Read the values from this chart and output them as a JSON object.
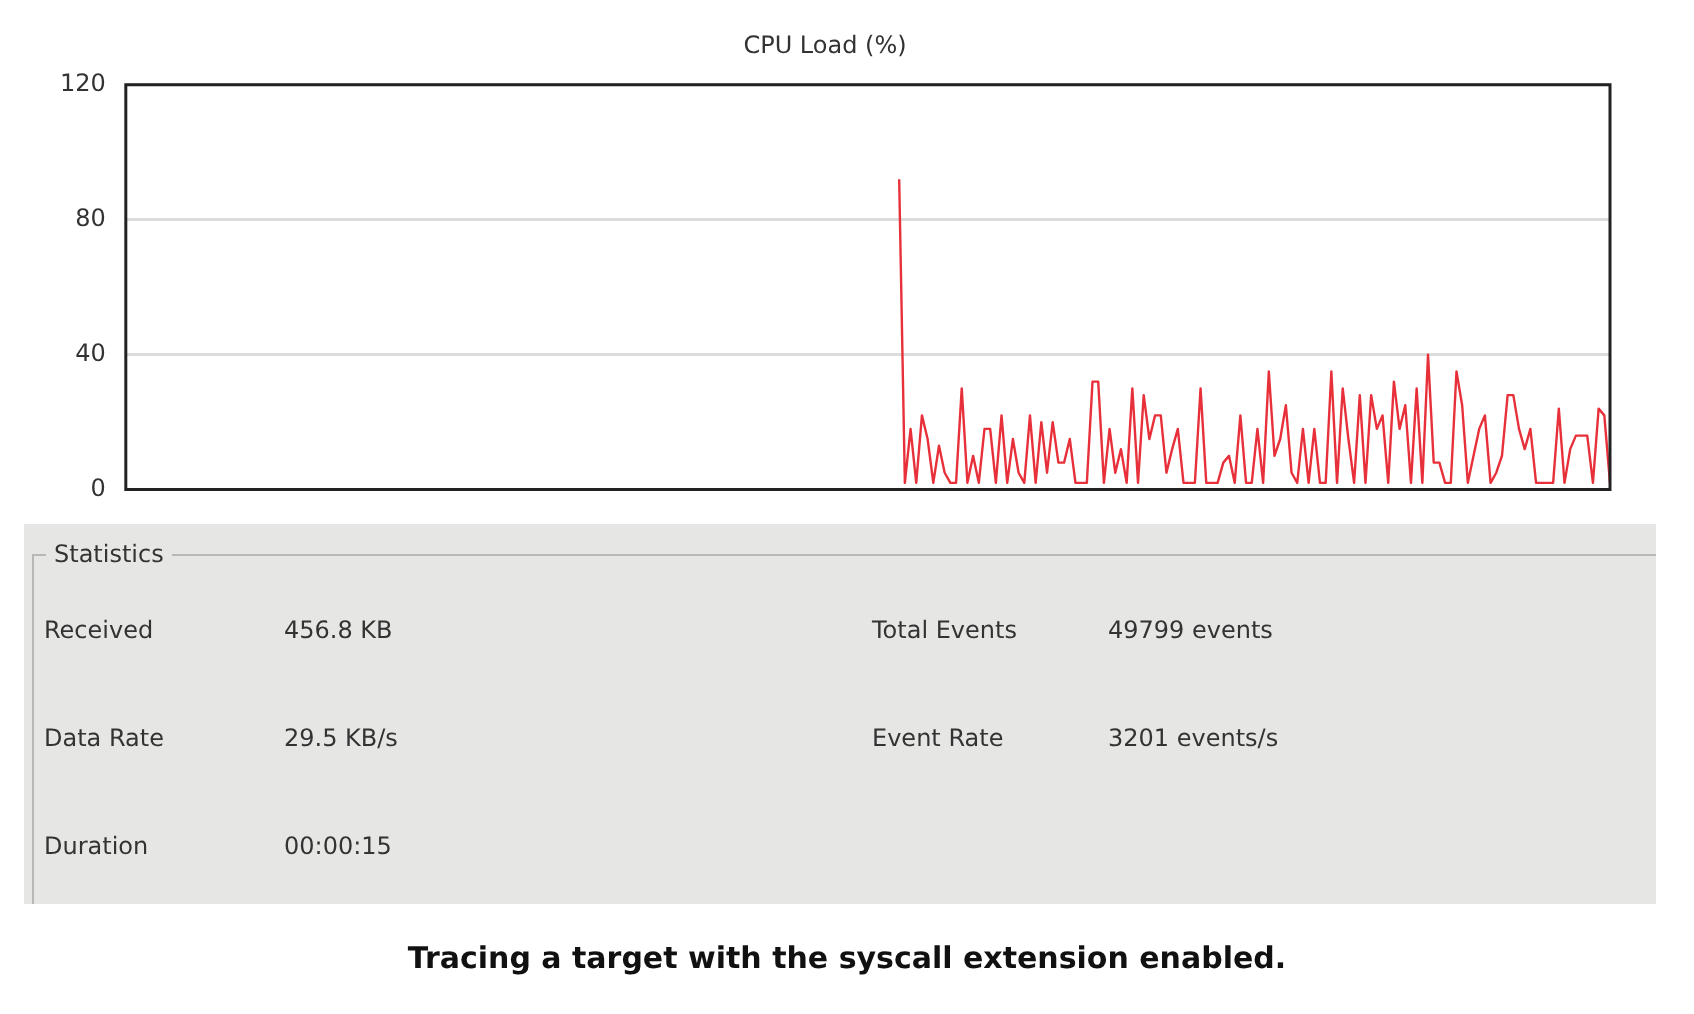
{
  "chart_data": {
    "type": "line",
    "title": "CPU Load (%)",
    "categories": [
      null,
      null,
      null,
      null,
      null,
      null,
      null,
      null,
      null,
      null,
      null,
      null,
      null,
      null,
      null,
      null,
      null,
      null,
      null,
      null,
      null,
      null,
      null,
      null,
      null,
      null,
      null,
      null,
      null,
      null,
      null,
      null,
      null,
      null,
      null,
      null,
      null,
      null,
      null,
      null,
      null,
      null,
      null,
      null,
      null,
      null,
      null,
      null,
      null,
      null,
      null,
      null,
      null,
      null,
      null,
      null,
      null,
      null,
      null,
      null,
      null,
      null,
      null,
      null,
      null,
      null,
      null,
      null,
      null,
      null,
      null,
      null,
      null,
      null,
      null,
      null,
      null,
      null,
      null,
      null,
      null,
      null,
      null,
      null,
      null,
      null,
      null,
      null,
      null,
      null,
      null,
      null,
      null,
      null,
      null,
      null,
      null,
      null,
      null,
      null,
      null,
      null,
      null,
      null,
      null,
      null,
      null,
      null,
      null,
      null,
      null,
      null,
      null,
      null,
      null,
      null,
      null,
      null,
      null,
      null,
      null,
      null,
      null,
      null,
      null,
      null,
      null,
      null,
      null,
      null,
      null,
      null,
      null,
      null,
      null,
      null,
      null,
      null,
      null,
      null,
      null,
      null,
      null,
      null,
      null,
      null,
      null,
      null,
      null,
      null,
      null,
      null,
      null,
      null,
      null,
      null,
      null,
      null,
      null,
      null,
      null,
      null,
      null,
      null,
      null,
      null,
      null,
      null,
      null,
      null,
      null,
      null,
      null,
      null,
      null,
      null,
      null,
      null,
      null,
      null,
      null,
      null,
      null,
      null,
      null,
      null,
      null,
      null,
      null,
      null,
      null,
      null,
      null,
      null,
      null,
      null,
      null,
      null,
      null,
      null,
      null,
      null,
      null,
      null,
      null,
      null,
      null,
      null,
      null,
      null,
      null,
      null,
      null,
      null,
      null,
      null,
      null,
      null,
      null,
      null,
      null,
      null,
      null,
      null,
      null,
      null,
      null,
      null,
      null,
      null,
      null,
      null,
      null,
      null,
      null,
      null,
      null,
      null,
      null,
      null,
      null,
      null,
      null,
      null,
      null,
      null,
      null,
      null,
      null,
      null,
      null,
      null,
      null,
      null,
      null,
      null,
      null,
      null,
      null,
      null,
      null,
      null
    ],
    "series": [
      {
        "color": "#e8303a",
        "values": [
          null,
          null,
          null,
          null,
          null,
          null,
          null,
          null,
          null,
          null,
          null,
          null,
          null,
          null,
          null,
          null,
          null,
          null,
          null,
          null,
          null,
          null,
          null,
          null,
          null,
          null,
          null,
          null,
          null,
          null,
          null,
          null,
          null,
          null,
          null,
          null,
          null,
          null,
          null,
          null,
          null,
          null,
          null,
          null,
          null,
          null,
          null,
          null,
          null,
          null,
          null,
          null,
          null,
          null,
          null,
          null,
          null,
          null,
          null,
          null,
          null,
          null,
          null,
          null,
          null,
          null,
          null,
          null,
          null,
          null,
          null,
          null,
          null,
          null,
          null,
          null,
          null,
          null,
          null,
          null,
          null,
          null,
          null,
          null,
          null,
          null,
          null,
          null,
          null,
          null,
          null,
          null,
          null,
          null,
          null,
          null,
          null,
          null,
          null,
          null,
          null,
          null,
          null,
          null,
          null,
          null,
          null,
          null,
          null,
          null,
          null,
          null,
          null,
          null,
          null,
          null,
          null,
          null,
          null,
          null,
          null,
          null,
          null,
          null,
          null,
          null,
          null,
          null,
          null,
          null,
          null,
          null,
          null,
          null,
          null,
          null,
          92,
          2,
          18,
          2,
          22,
          15,
          2,
          13,
          5,
          2,
          2,
          30,
          2,
          10,
          2,
          18,
          18,
          2,
          22,
          2,
          15,
          5,
          2,
          22,
          2,
          20,
          5,
          20,
          8,
          8,
          15,
          2,
          2,
          2,
          32,
          32,
          2,
          18,
          5,
          12,
          2,
          30,
          2,
          28,
          15,
          22,
          22,
          5,
          12,
          18,
          2,
          2,
          2,
          30,
          2,
          2,
          2,
          8,
          10,
          2,
          22,
          2,
          2,
          18,
          2,
          35,
          10,
          15,
          25,
          5,
          2,
          18,
          2,
          18,
          2,
          2,
          35,
          2,
          30,
          15,
          2,
          28,
          2,
          28,
          18,
          22,
          2,
          32,
          18,
          25,
          2,
          30,
          2,
          40,
          8,
          8,
          2,
          2,
          35,
          25,
          2,
          10,
          18,
          22,
          2,
          5,
          10,
          28,
          28,
          18,
          12,
          18,
          2,
          2,
          2,
          2,
          24,
          2,
          12,
          16,
          16,
          16,
          2,
          24,
          22,
          2
        ]
      }
    ],
    "ylim": [
      0,
      120
    ],
    "yticks": [
      0,
      40,
      80,
      120
    ],
    "grid": "y",
    "legend": false,
    "marker": "none",
    "tick_labels": "y",
    "annotations": [
      "Statistics",
      "Received",
      "456.8 KB",
      "Total Events",
      "49799 events",
      "Data Rate",
      "29.5 KB/s",
      "Event Rate",
      "3201 events/s",
      "Duration",
      "00:00:15",
      "Tracing a target with the syscall extension enabled."
    ]
  }
}
